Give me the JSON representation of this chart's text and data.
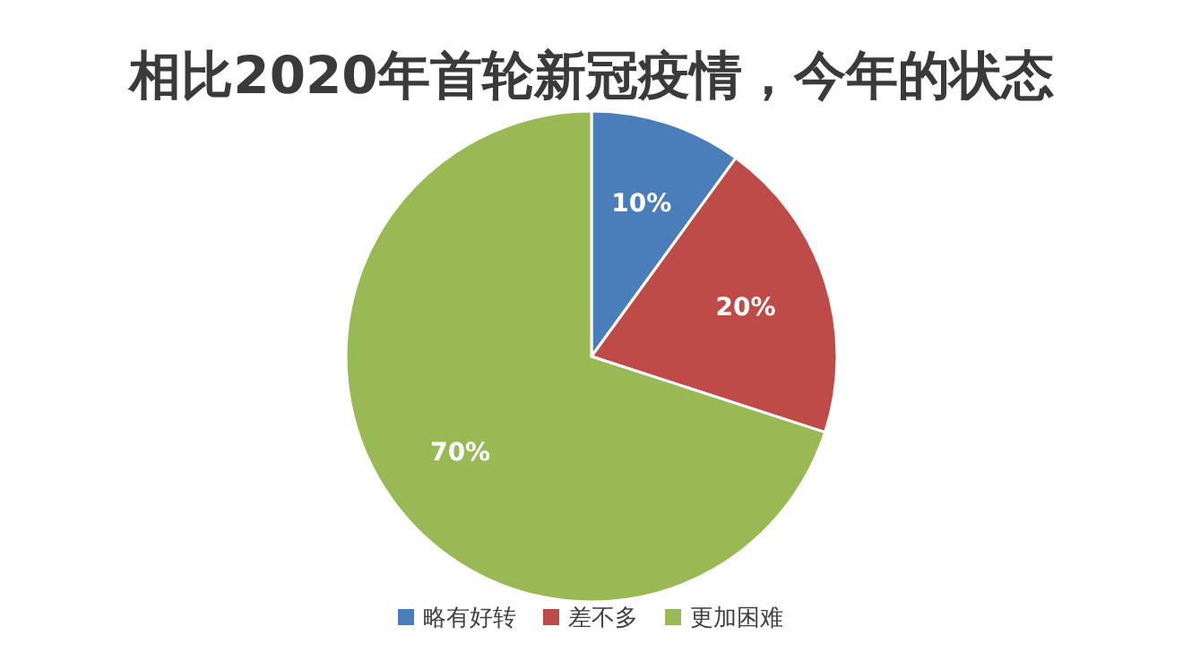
{
  "chart_data": {
    "type": "pie",
    "title": "相比2020年首轮新冠疫情，今年的状态",
    "categories": [
      "略有好转",
      "差不多",
      "更加困难"
    ],
    "values": [
      10,
      20,
      70
    ],
    "colors": [
      "#4a7ebb",
      "#be4b48",
      "#98b954"
    ],
    "value_labels": [
      "10%",
      "20%",
      "70%"
    ],
    "legend": "bottom"
  }
}
